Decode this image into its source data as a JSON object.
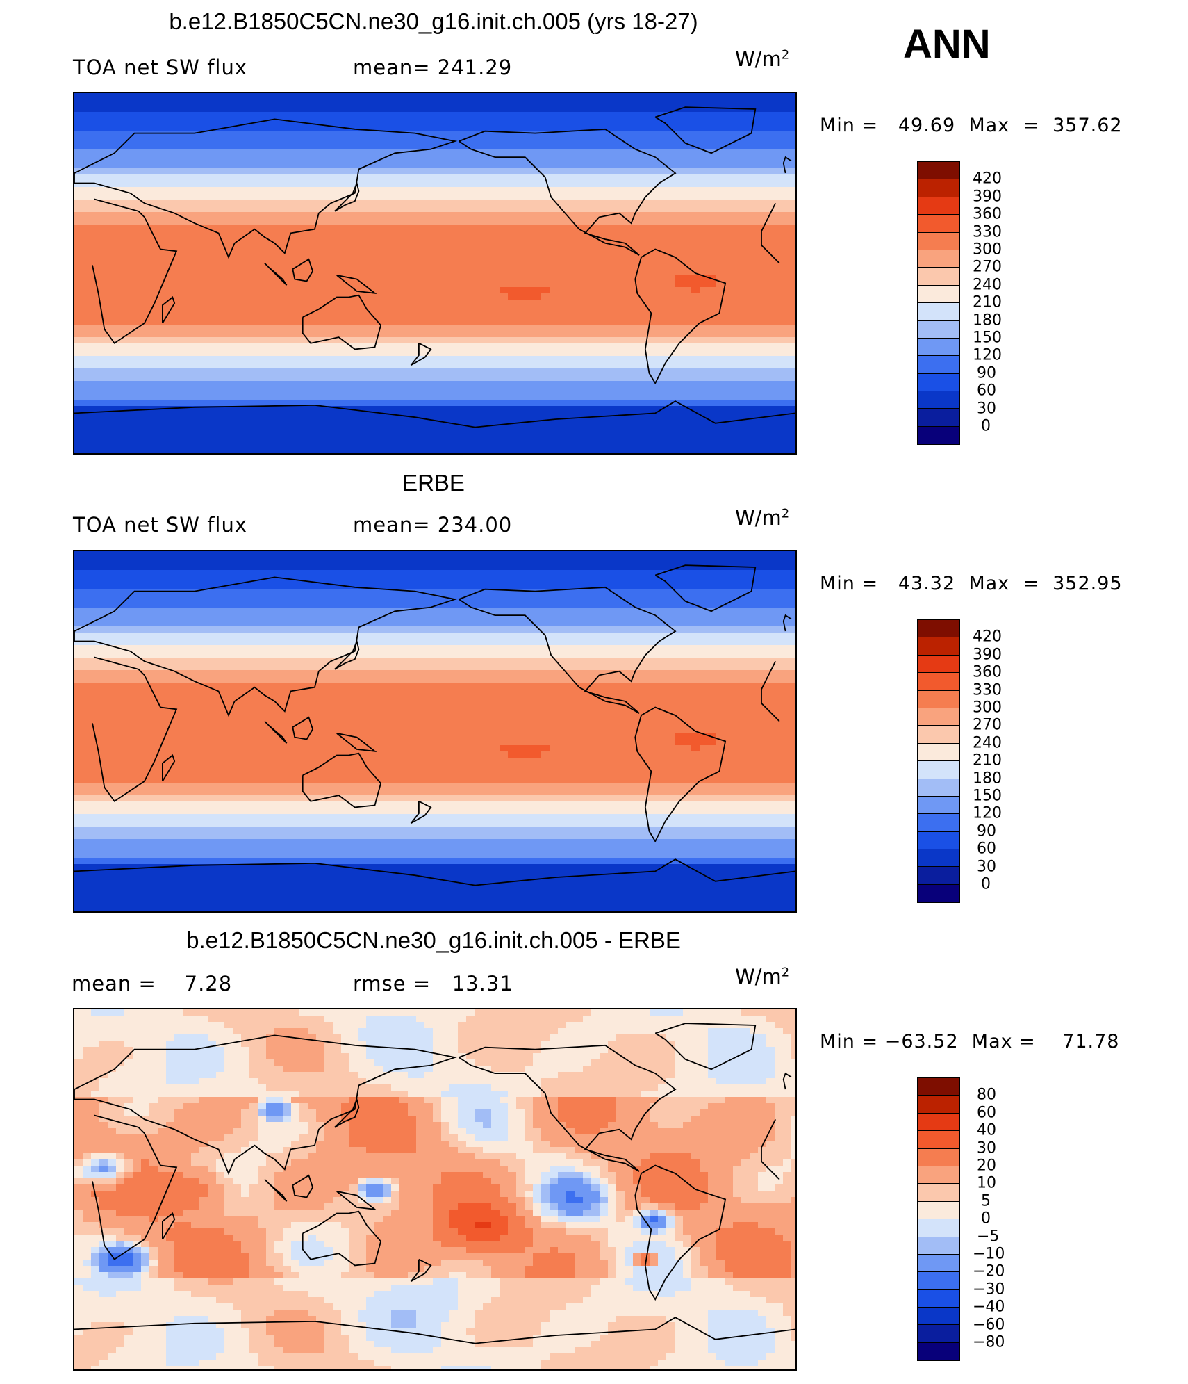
{
  "season": "ANN",
  "colors": {
    "abs": [
      "#08007a",
      "#0a1e9e",
      "#0a37c8",
      "#1a50e6",
      "#3c6ff0",
      "#6f98f4",
      "#a2bdf6",
      "#d3e3fa",
      "#fbeadc",
      "#fbc8ad",
      "#f9a37e",
      "#f57d50",
      "#f25a2d",
      "#e53a14",
      "#bb2200",
      "#7e0e00"
    ],
    "diff": [
      "#08007a",
      "#0a1e9e",
      "#0a37c8",
      "#1a50e6",
      "#3c6ff0",
      "#6f98f4",
      "#a2bdf6",
      "#d3e3fa",
      "#fbeadc",
      "#fbc8ad",
      "#f9a37e",
      "#f57d50",
      "#f25a2d",
      "#e53a14",
      "#bb2200",
      "#7e0e00"
    ],
    "coast": "#000000"
  },
  "panels": [
    {
      "title": "b.e12.B1850C5CN.ne30_g16.init.ch.005 (yrs 18-27)",
      "left_label": "TOA net SW flux",
      "center_label": "mean= 241.29",
      "units": "W/m",
      "units_sup": "2",
      "minmax": "Min =   49.69  Max  =  357.62",
      "levels": [
        "420",
        "390",
        "360",
        "330",
        "300",
        "270",
        "240",
        "210",
        "180",
        "150",
        "120",
        "90",
        "60",
        "30",
        "0"
      ],
      "field": "model"
    },
    {
      "title": "ERBE",
      "left_label": "TOA net SW flux",
      "center_label": "mean= 234.00",
      "units": "W/m",
      "units_sup": "2",
      "minmax": "Min =   43.32  Max  =  352.95",
      "levels": [
        "420",
        "390",
        "360",
        "330",
        "300",
        "270",
        "240",
        "210",
        "180",
        "150",
        "120",
        "90",
        "60",
        "30",
        "0"
      ],
      "field": "obs"
    },
    {
      "title": "b.e12.B1850C5CN.ne30_g16.init.ch.005 - ERBE",
      "left_label": "mean =    7.28",
      "center_label": "rmse =   13.31",
      "units": "W/m",
      "units_sup": "2",
      "minmax": "Min = −63.52  Max =    71.78",
      "levels": [
        "80",
        "60",
        "40",
        "30",
        "20",
        "10",
        "5",
        "0",
        "−5",
        "−10",
        "−20",
        "−30",
        "−40",
        "−60",
        "−80"
      ],
      "field": "diff"
    }
  ]
}
